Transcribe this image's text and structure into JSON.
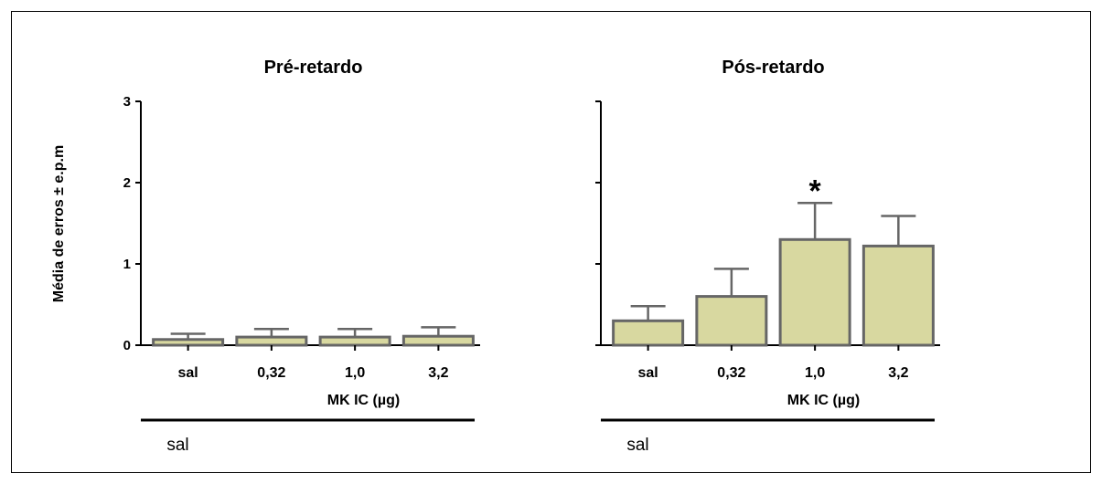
{
  "figure": {
    "ylabel": "Média de erros ± e.p.m"
  },
  "chart_data": [
    {
      "type": "bar",
      "title": "Pré-retardo",
      "categories": [
        "sal",
        "0,32",
        "1,0",
        "3,2"
      ],
      "values": [
        0.07,
        0.1,
        0.1,
        0.11
      ],
      "errors": [
        0.07,
        0.1,
        0.1,
        0.11
      ],
      "xlabel": "MK IC (µg)",
      "ylabel": "Média de erros ± e.p.m",
      "ylim": [
        0,
        3
      ],
      "yticks": [
        "0",
        "1",
        "2",
        "3"
      ],
      "group_label": "sal",
      "annotations": [],
      "bar_color": "#d8d8a0",
      "bar_edge_color": "#666666"
    },
    {
      "type": "bar",
      "title": "Pós-retardo",
      "categories": [
        "sal",
        "0,32",
        "1,0",
        "3,2"
      ],
      "values": [
        0.3,
        0.6,
        1.3,
        1.22
      ],
      "errors": [
        0.18,
        0.34,
        0.45,
        0.37
      ],
      "xlabel": "MK IC (µg)",
      "ylim": [
        0,
        3
      ],
      "yticks": [],
      "group_label": "sal",
      "annotations": [
        {
          "category_index": 2,
          "text": "*"
        }
      ],
      "bar_color": "#d8d8a0",
      "bar_edge_color": "#666666"
    }
  ]
}
